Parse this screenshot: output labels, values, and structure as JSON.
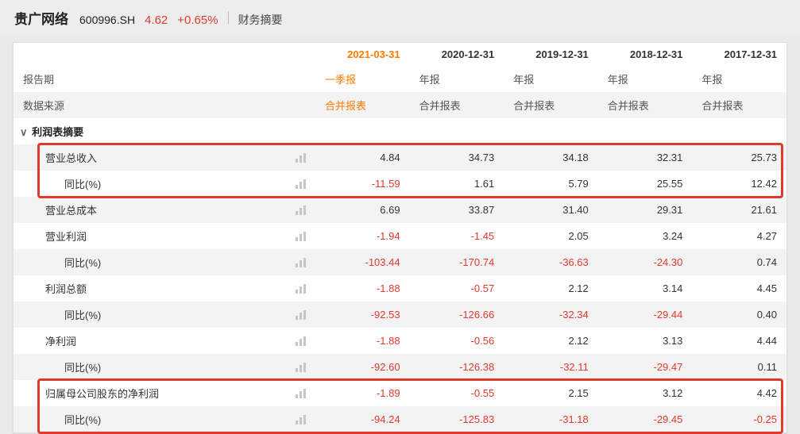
{
  "header": {
    "name": "贵广网络",
    "code": "600996.SH",
    "price": "4.62",
    "change": "+0.65%",
    "price_color": "#e03a2f",
    "section_title": "财务摘要"
  },
  "columns": {
    "dates": [
      "2021-03-31",
      "2020-12-31",
      "2019-12-31",
      "2018-12-31",
      "2017-12-31"
    ],
    "active_date_color": "#ff7a00",
    "inactive_date_color": "#333333",
    "period_label": "报告期",
    "source_label": "数据来源",
    "periods": [
      "一季报",
      "年报",
      "年报",
      "年报",
      "年报"
    ],
    "sources": [
      "合并报表",
      "合并报表",
      "合并报表",
      "合并报表",
      "合并报表"
    ],
    "period_active_color": "#ff7a00",
    "source_active_color": "#ff7a00"
  },
  "section": {
    "title": "利润表摘要"
  },
  "rows": [
    {
      "label": "营业总收入",
      "indent": 1,
      "values": [
        "4.84",
        "34.73",
        "34.18",
        "32.31",
        "25.73"
      ],
      "neg": [
        false,
        false,
        false,
        false,
        false
      ]
    },
    {
      "label": "同比(%)",
      "indent": 2,
      "values": [
        "-11.59",
        "1.61",
        "5.79",
        "25.55",
        "12.42"
      ],
      "neg": [
        true,
        false,
        false,
        false,
        false
      ]
    },
    {
      "label": "营业总成本",
      "indent": 1,
      "values": [
        "6.69",
        "33.87",
        "31.40",
        "29.31",
        "21.61"
      ],
      "neg": [
        false,
        false,
        false,
        false,
        false
      ]
    },
    {
      "label": "营业利润",
      "indent": 1,
      "values": [
        "-1.94",
        "-1.45",
        "2.05",
        "3.24",
        "4.27"
      ],
      "neg": [
        true,
        true,
        false,
        false,
        false
      ]
    },
    {
      "label": "同比(%)",
      "indent": 2,
      "values": [
        "-103.44",
        "-170.74",
        "-36.63",
        "-24.30",
        "0.74"
      ],
      "neg": [
        true,
        true,
        true,
        true,
        false
      ]
    },
    {
      "label": "利润总额",
      "indent": 1,
      "values": [
        "-1.88",
        "-0.57",
        "2.12",
        "3.14",
        "4.45"
      ],
      "neg": [
        true,
        true,
        false,
        false,
        false
      ]
    },
    {
      "label": "同比(%)",
      "indent": 2,
      "values": [
        "-92.53",
        "-126.66",
        "-32.34",
        "-29.44",
        "0.40"
      ],
      "neg": [
        true,
        true,
        true,
        true,
        false
      ]
    },
    {
      "label": "净利润",
      "indent": 1,
      "values": [
        "-1.88",
        "-0.56",
        "2.12",
        "3.13",
        "4.44"
      ],
      "neg": [
        true,
        true,
        false,
        false,
        false
      ]
    },
    {
      "label": "同比(%)",
      "indent": 2,
      "values": [
        "-92.60",
        "-126.38",
        "-32.11",
        "-29.47",
        "0.11"
      ],
      "neg": [
        true,
        true,
        true,
        true,
        false
      ]
    },
    {
      "label": "归属母公司股东的净利润",
      "indent": 1,
      "values": [
        "-1.89",
        "-0.55",
        "2.15",
        "3.12",
        "4.42"
      ],
      "neg": [
        true,
        true,
        false,
        false,
        false
      ]
    },
    {
      "label": "同比(%)",
      "indent": 2,
      "values": [
        "-94.24",
        "-125.83",
        "-31.18",
        "-29.45",
        "-0.25"
      ],
      "neg": [
        true,
        true,
        true,
        true,
        true
      ]
    }
  ],
  "colors": {
    "negative": "#e03a2f",
    "positive": "#333333",
    "row_alt_bg": "#f3f3f3",
    "highlight_border": "#e03a2f"
  },
  "highlights": [
    {
      "top_row": 0,
      "bottom_row": 1
    },
    {
      "top_row": 9,
      "bottom_row": 10
    }
  ]
}
